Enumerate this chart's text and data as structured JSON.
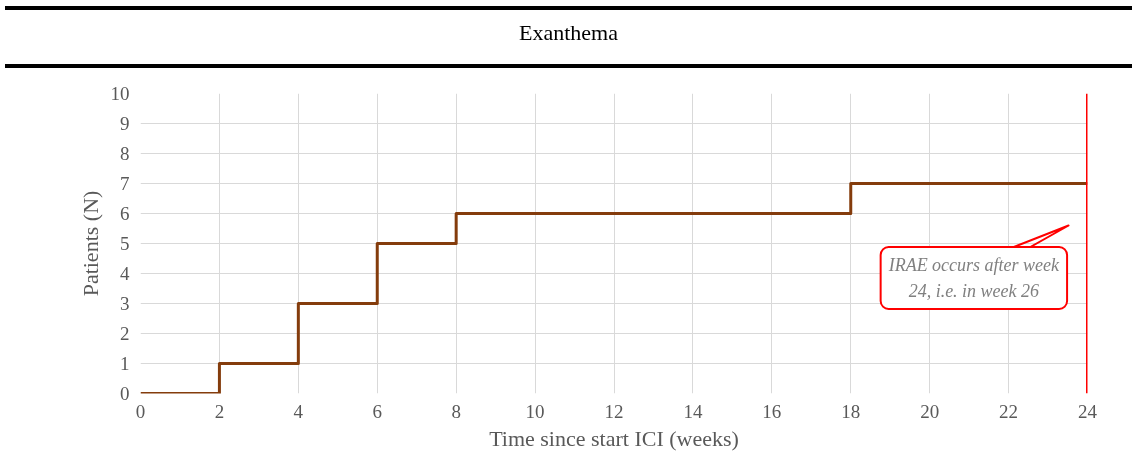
{
  "chart_data": {
    "type": "step",
    "title": "Exanthema",
    "xlabel": "Time since start ICI (weeks)",
    "ylabel": "Patients (N)",
    "x": [
      0,
      2,
      4,
      6,
      8,
      18,
      24
    ],
    "series": [
      {
        "color": "#843c0c",
        "values": [
          0,
          1,
          3,
          5,
          6,
          7,
          7
        ]
      }
    ],
    "xlim": [
      0,
      24
    ],
    "ylim": [
      0,
      10
    ],
    "xticks": [
      0,
      2,
      4,
      6,
      8,
      10,
      12,
      14,
      16,
      18,
      20,
      22,
      24
    ],
    "yticks": [
      0,
      1,
      2,
      3,
      4,
      5,
      6,
      7,
      8,
      9,
      10
    ],
    "grid": true,
    "line_style": "solid",
    "marker": "none",
    "ref_lines": [
      {
        "axis": "x",
        "value": 24,
        "label": null,
        "color": "#ff0000"
      }
    ],
    "annotations": [
      "IRAE occurs after week 24, i.e. in week 26"
    ]
  }
}
